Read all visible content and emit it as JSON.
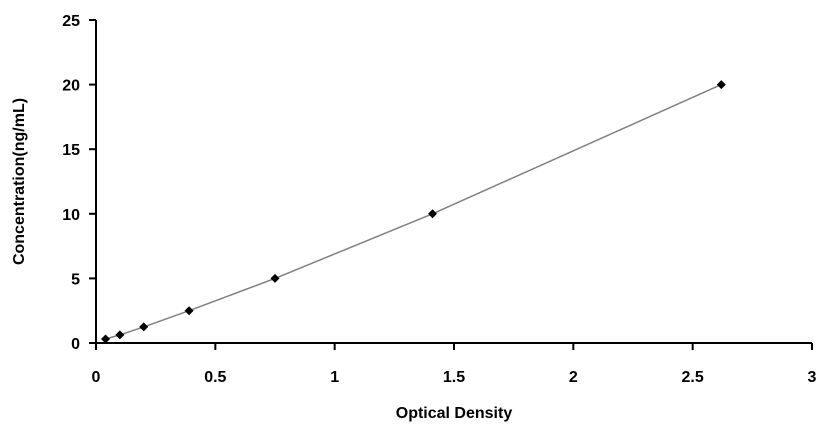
{
  "chart_data": {
    "type": "scatter",
    "title": "",
    "xlabel": "Optical Density",
    "ylabel": "Concentration(ng/mL)",
    "xlim": [
      0,
      3
    ],
    "ylim": [
      0,
      25
    ],
    "x_ticks": [
      0,
      0.5,
      1,
      1.5,
      2,
      2.5,
      3
    ],
    "x_tick_labels": [
      "0",
      "0.5",
      "1",
      "1.5",
      "2",
      "2.5",
      "3"
    ],
    "y_ticks": [
      0,
      5,
      10,
      15,
      20,
      25
    ],
    "y_tick_labels": [
      "0",
      "5",
      "10",
      "15",
      "20",
      "25"
    ],
    "grid": false,
    "legend": "none",
    "series": [
      {
        "x": [
          0.04,
          0.1,
          0.2,
          0.39,
          0.75,
          1.41,
          2.62
        ],
        "y": [
          0.313,
          0.625,
          1.25,
          2.5,
          5,
          10,
          20
        ],
        "marker": "diamond",
        "color": "#000000",
        "fit_line": true,
        "line_color": "#808080"
      }
    ]
  }
}
